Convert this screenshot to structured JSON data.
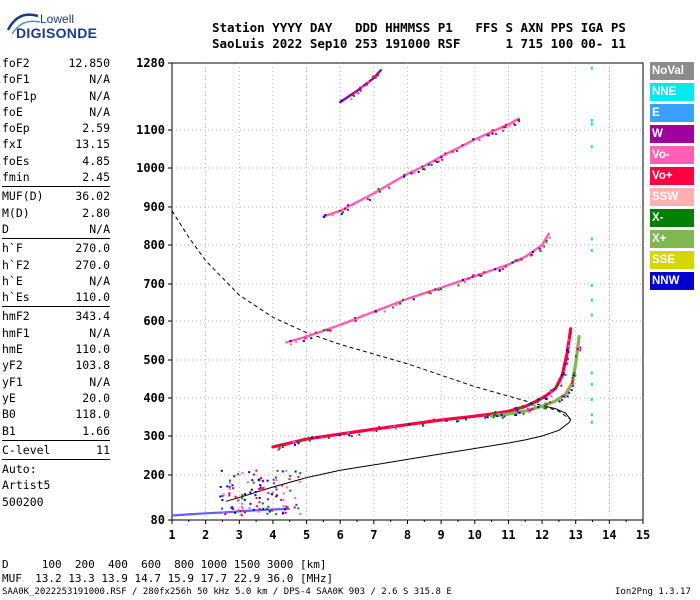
{
  "logo": {
    "line1": "Lowell",
    "line2": "DIGISONDE"
  },
  "header": {
    "line1": "Station YYYY DAY   DDD HHMMSS P1   FFS S AXN PPS IGA PS",
    "line2": "SaoLuis 2022 Sep10 253 191000 RSF      1 715 100 00- 11"
  },
  "params": {
    "group1": [
      {
        "label": "foF2",
        "value": "12.850"
      },
      {
        "label": "foF1",
        "value": "N/A"
      },
      {
        "label": "foF1p",
        "value": "N/A"
      },
      {
        "label": "foE",
        "value": "N/A"
      },
      {
        "label": "foEp",
        "value": "2.59"
      },
      {
        "label": "fxI",
        "value": "13.15"
      },
      {
        "label": "foEs",
        "value": "4.85"
      },
      {
        "label": "fmin",
        "value": "2.45"
      }
    ],
    "group2": [
      {
        "label": "MUF(D)",
        "value": "36.02"
      },
      {
        "label": "M(D)",
        "value": "2.80"
      },
      {
        "label": "D",
        "value": "N/A"
      }
    ],
    "group3": [
      {
        "label": "h`F",
        "value": "270.0"
      },
      {
        "label": "h`F2",
        "value": "270.0"
      },
      {
        "label": "h`E",
        "value": "N/A"
      },
      {
        "label": "h`Es",
        "value": "110.0"
      }
    ],
    "group4": [
      {
        "label": "hmF2",
        "value": "343.4"
      },
      {
        "label": "hmF1",
        "value": "N/A"
      },
      {
        "label": "hmE",
        "value": "110.0"
      },
      {
        "label": "yF2",
        "value": "103.8"
      },
      {
        "label": "yF1",
        "value": "N/A"
      },
      {
        "label": "yE",
        "value": "20.0"
      },
      {
        "label": "B0",
        "value": "118.0"
      },
      {
        "label": "B1",
        "value": "1.66"
      }
    ],
    "group5": [
      {
        "label": "C-level",
        "value": "11"
      }
    ],
    "auto": {
      "title": "Auto:",
      "line1": "Artist5",
      "line2": "500200"
    }
  },
  "legend": [
    {
      "label": "NoVal",
      "color": "#8c8c8c"
    },
    {
      "label": "NNE",
      "color": "#00e8f0"
    },
    {
      "label": "E",
      "color": "#3aa0ff"
    },
    {
      "label": "W",
      "color": "#a0009e"
    },
    {
      "label": "Vo-",
      "color": "#ff5fb4"
    },
    {
      "label": "Vo+",
      "color": "#ff0040"
    },
    {
      "label": "SSW",
      "color": "#ffb0b0"
    },
    {
      "label": "X-",
      "color": "#008000"
    },
    {
      "label": "X+",
      "color": "#80b850"
    },
    {
      "label": "SSE",
      "color": "#d6d600"
    },
    {
      "label": "NNW",
      "color": "#0000d0"
    }
  ],
  "footer": {
    "d_line": "D     100  200  400  600  800 1000 1500 3000 [km]",
    "muf_line": "MUF  13.2 13.3 13.9 14.7 15.9 17.7 22.9 36.0 [MHz]",
    "file_line": "SAA0K_2022253191000.RSF / 280fx256h 50 kHz 5.0 km / DPS-4 SAA0K 903 / 2.6 S 315.8 E",
    "version": "Ion2Png 1.3.17"
  },
  "chart_data": {
    "type": "scatter",
    "xlim": [
      1,
      15
    ],
    "ylim": [
      80,
      1280
    ],
    "x_ticks": [
      "1",
      "2",
      "3",
      "4",
      "5",
      "6",
      "7",
      "8",
      "9",
      "10",
      "11",
      "12",
      "13",
      "14",
      "15"
    ],
    "y_ticks": [
      "80",
      "200",
      "300",
      "400",
      "500",
      "600",
      "700",
      "800",
      "900",
      "1000",
      "1100",
      "1280"
    ],
    "y_tick_values": [
      80,
      200,
      300,
      400,
      500,
      600,
      700,
      800,
      900,
      1000,
      1100,
      1280
    ],
    "traces": [
      {
        "name": "F2 trace (O)",
        "color": "#ff0040",
        "x": [
          4.0,
          4.5,
          5.0,
          6.0,
          7.0,
          8.0,
          9.0,
          10.0,
          10.5,
          11.0,
          11.5,
          11.8,
          12.1,
          12.4,
          12.6,
          12.75,
          12.85
        ],
        "y": [
          272,
          282,
          292,
          305,
          318,
          330,
          342,
          352,
          358,
          365,
          378,
          390,
          405,
          425,
          460,
          520,
          580
        ]
      },
      {
        "name": "F2 trace (X)",
        "color": "#80b850",
        "x": [
          10.5,
          11.0,
          11.5,
          12.0,
          12.4,
          12.7,
          12.9,
          13.0,
          13.1
        ],
        "y": [
          352,
          358,
          366,
          378,
          392,
          410,
          440,
          490,
          560
        ]
      },
      {
        "name": "2nd hop",
        "color": "#ff5fb4",
        "x": [
          4.4,
          5.0,
          6.0,
          7.0,
          8.0,
          9.0,
          10.0,
          10.5,
          11.0,
          11.5,
          12.0,
          12.2
        ],
        "y": [
          545,
          560,
          590,
          625,
          660,
          690,
          720,
          735,
          750,
          770,
          800,
          830
        ]
      },
      {
        "name": "3rd hop",
        "color": "#ff5fb4",
        "x": [
          5.5,
          6.0,
          7.0,
          8.0,
          8.5,
          9.0,
          10.0,
          10.5,
          11.0,
          11.3
        ],
        "y": [
          875,
          890,
          935,
          985,
          1005,
          1030,
          1075,
          1095,
          1115,
          1130
        ]
      },
      {
        "name": "4th hop",
        "color": "#a0009e",
        "x": [
          6.0,
          6.5,
          7.0,
          7.2
        ],
        "y": [
          1175,
          1205,
          1240,
          1260
        ]
      }
    ],
    "profile": {
      "x": [
        2.6,
        3.0,
        4.0,
        5.0,
        6.0,
        7.0,
        8.0,
        9.0,
        10.0,
        11.0,
        11.5,
        12.0,
        12.5,
        12.8,
        12.85,
        12.7,
        12.4,
        12.0
      ],
      "y": [
        130,
        140,
        168,
        193,
        212,
        226,
        240,
        254,
        268,
        282,
        290,
        300,
        315,
        335,
        343,
        360,
        372,
        380
      ]
    },
    "muf_curve": {
      "x": [
        1.0,
        1.5,
        2.0,
        3.0,
        4.0,
        5.0,
        6.0,
        7.0,
        8.0,
        9.0,
        10.0,
        11.0,
        12.0,
        12.5,
        12.85
      ],
      "y": [
        890,
        820,
        760,
        670,
        610,
        570,
        540,
        515,
        490,
        460,
        430,
        405,
        380,
        365,
        343
      ]
    }
  }
}
